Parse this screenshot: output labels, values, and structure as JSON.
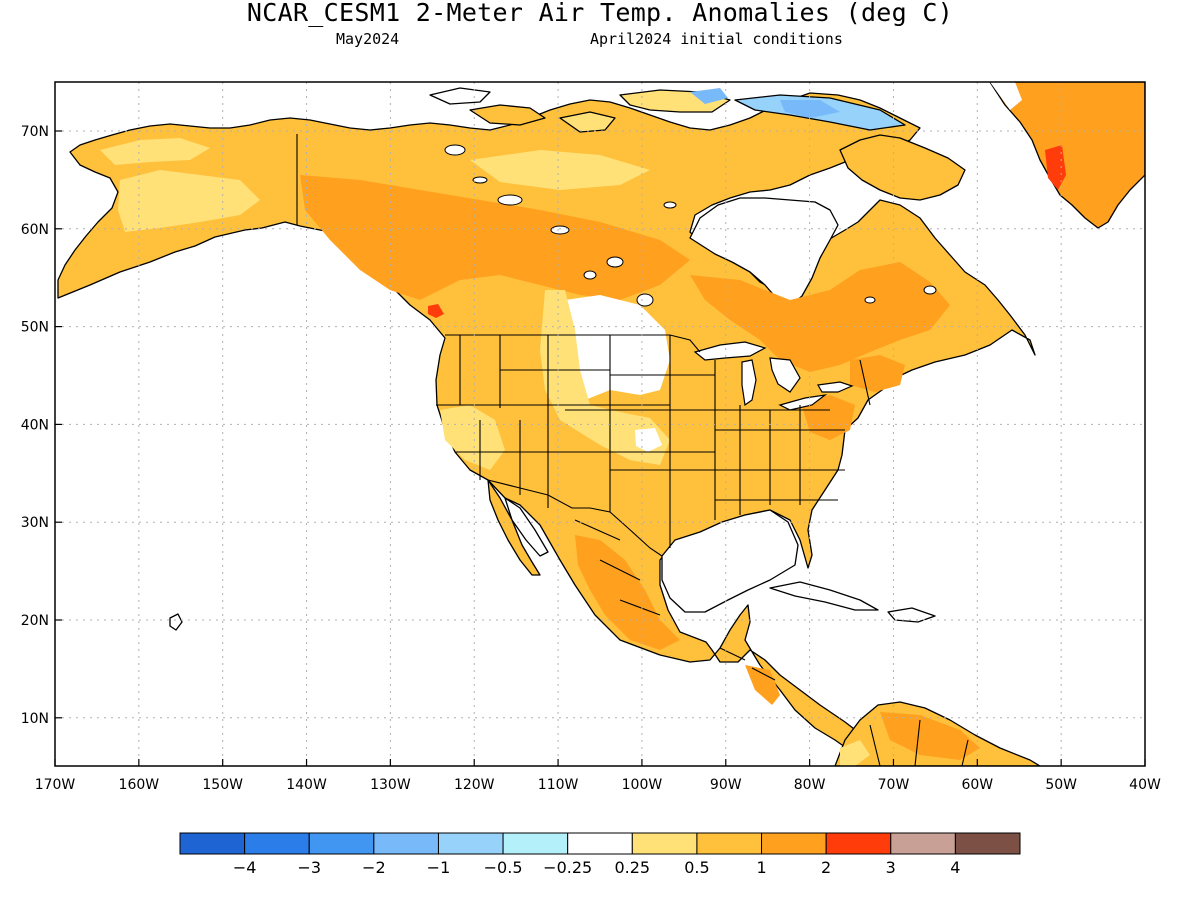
{
  "header": {
    "title": "NCAR_CESM1 2-Meter Air Temp. Anomalies (deg C)",
    "valid_month": "May2024",
    "initial_conditions": "April2024 initial conditions"
  },
  "map": {
    "lat_labels": [
      "70N",
      "60N",
      "50N",
      "40N",
      "30N",
      "20N",
      "10N"
    ],
    "lon_labels": [
      "170W",
      "160W",
      "150W",
      "140W",
      "130W",
      "120W",
      "110W",
      "100W",
      "90W",
      "80W",
      "70W",
      "60W",
      "50W",
      "40W"
    ],
    "land_color": "#ffffff",
    "coast_color": "#000000"
  },
  "colorbar": {
    "colors": [
      "#1e64d2",
      "#2b7de9",
      "#4096f0",
      "#78b9fa",
      "#96d2fa",
      "#b4f0fa",
      "#ffffff",
      "#ffe178",
      "#ffc03c",
      "#ffa01e",
      "#ff3c0a",
      "#c8a096",
      "#7d5046"
    ],
    "labels": [
      "−4",
      "−3",
      "−2",
      "−1",
      "−0.5",
      "−0.25",
      "0.25",
      "0.5",
      "1",
      "2",
      "3",
      "4"
    ]
  },
  "anomaly_colors": {
    "light": "#ffe178",
    "moderate": "#ffc03c",
    "strong": "#ffa01e",
    "very_strong": "#ff3c0a",
    "cool_1": "#96d2fa",
    "cool_2": "#78b9fa"
  }
}
